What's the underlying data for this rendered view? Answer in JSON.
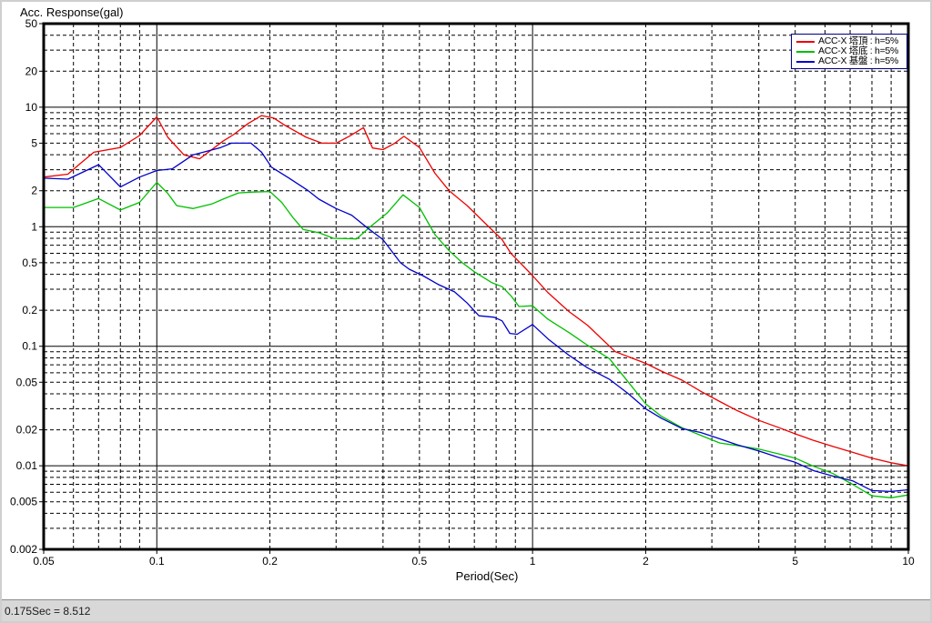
{
  "status_bar": {
    "text": "0.175Sec = 8.512"
  },
  "chart_data": {
    "type": "line",
    "title": "",
    "ylabel": "Acc. Response(gal)",
    "xlabel": "Period(Sec)",
    "x_scale": "log",
    "y_scale": "log",
    "xlim": [
      0.05,
      10
    ],
    "ylim": [
      0.002,
      50
    ],
    "x_ticks": [
      0.05,
      0.1,
      0.2,
      0.5,
      1,
      2,
      5,
      10
    ],
    "x_tick_labels": [
      "0.05",
      "0.1",
      "0.2",
      "0.5",
      "1",
      "2",
      "5",
      "10"
    ],
    "y_ticks": [
      50,
      20,
      10,
      5,
      2,
      1,
      0.5,
      0.2,
      0.1,
      0.05,
      0.02,
      0.01,
      0.005,
      0.002
    ],
    "y_tick_labels": [
      "50",
      "20",
      "10",
      "5",
      "2",
      "1",
      "0.5",
      "0.2",
      "0.1",
      "0.05",
      "0.02",
      "0.01",
      "0.005",
      "0.002"
    ],
    "grid": {
      "on": true,
      "major_style": "solid",
      "minor_style": "dashed",
      "color": "#000000"
    },
    "legend": {
      "position": "top-right",
      "border_color": "#000080",
      "entries": [
        {
          "label": "ACC-X 塔頂 : h=5%",
          "color": "#ee0000"
        },
        {
          "label": "ACC-X 塔底 : h=5%",
          "color": "#00c000"
        },
        {
          "label": "ACC-X 基盤 : h=5%",
          "color": "#0000cc"
        }
      ]
    },
    "series": [
      {
        "name": "ACC-X 塔頂 : h=5%",
        "color": "#ee0000",
        "points": [
          [
            0.05,
            2.6
          ],
          [
            0.058,
            2.75
          ],
          [
            0.062,
            3.3
          ],
          [
            0.068,
            4.2
          ],
          [
            0.08,
            4.6
          ],
          [
            0.09,
            5.8
          ],
          [
            0.1,
            8.3
          ],
          [
            0.107,
            5.6
          ],
          [
            0.118,
            4.0
          ],
          [
            0.13,
            3.7
          ],
          [
            0.15,
            5.2
          ],
          [
            0.16,
            5.9
          ],
          [
            0.175,
            7.3
          ],
          [
            0.19,
            8.5
          ],
          [
            0.205,
            8.1
          ],
          [
            0.22,
            7.0
          ],
          [
            0.25,
            5.6
          ],
          [
            0.275,
            5.0
          ],
          [
            0.3,
            5.0
          ],
          [
            0.325,
            5.7
          ],
          [
            0.355,
            6.75
          ],
          [
            0.375,
            4.56
          ],
          [
            0.4,
            4.42
          ],
          [
            0.43,
            5.0
          ],
          [
            0.455,
            5.7
          ],
          [
            0.5,
            4.6
          ],
          [
            0.55,
            2.8
          ],
          [
            0.6,
            2.0
          ],
          [
            0.67,
            1.5
          ],
          [
            0.75,
            1.06
          ],
          [
            0.83,
            0.78
          ],
          [
            0.875,
            0.6
          ],
          [
            1.0,
            0.39
          ],
          [
            1.1,
            0.28
          ],
          [
            1.25,
            0.195
          ],
          [
            1.4,
            0.15
          ],
          [
            1.66,
            0.09
          ],
          [
            2.0,
            0.072
          ],
          [
            2.2,
            0.062
          ],
          [
            2.5,
            0.052
          ],
          [
            2.8,
            0.042
          ],
          [
            3.15,
            0.0345
          ],
          [
            3.5,
            0.029
          ],
          [
            4.0,
            0.024
          ],
          [
            4.5,
            0.021
          ],
          [
            5.0,
            0.0185
          ],
          [
            5.6,
            0.0163
          ],
          [
            6.3,
            0.0145
          ],
          [
            7.1,
            0.013
          ],
          [
            8.0,
            0.0116
          ],
          [
            9.0,
            0.0106
          ],
          [
            10,
            0.01
          ]
        ]
      },
      {
        "name": "ACC-X 塔底 : h=5%",
        "color": "#00c000",
        "points": [
          [
            0.05,
            1.45
          ],
          [
            0.06,
            1.45
          ],
          [
            0.07,
            1.72
          ],
          [
            0.08,
            1.38
          ],
          [
            0.09,
            1.6
          ],
          [
            0.1,
            2.35
          ],
          [
            0.107,
            1.9
          ],
          [
            0.113,
            1.5
          ],
          [
            0.125,
            1.42
          ],
          [
            0.14,
            1.55
          ],
          [
            0.15,
            1.7
          ],
          [
            0.165,
            1.92
          ],
          [
            0.18,
            1.95
          ],
          [
            0.2,
            1.97
          ],
          [
            0.215,
            1.6
          ],
          [
            0.23,
            1.2
          ],
          [
            0.245,
            0.95
          ],
          [
            0.27,
            0.89
          ],
          [
            0.295,
            0.8
          ],
          [
            0.34,
            0.79
          ],
          [
            0.37,
            1.0
          ],
          [
            0.41,
            1.3
          ],
          [
            0.452,
            1.85
          ],
          [
            0.48,
            1.6
          ],
          [
            0.5,
            1.45
          ],
          [
            0.53,
            1.05
          ],
          [
            0.55,
            0.86
          ],
          [
            0.6,
            0.63
          ],
          [
            0.65,
            0.5
          ],
          [
            0.7,
            0.42
          ],
          [
            0.78,
            0.34
          ],
          [
            0.83,
            0.315
          ],
          [
            0.88,
            0.26
          ],
          [
            0.92,
            0.215
          ],
          [
            1.0,
            0.218
          ],
          [
            1.1,
            0.168
          ],
          [
            1.25,
            0.13
          ],
          [
            1.4,
            0.102
          ],
          [
            1.6,
            0.079
          ],
          [
            1.8,
            0.05
          ],
          [
            2.0,
            0.033
          ],
          [
            2.2,
            0.026
          ],
          [
            2.5,
            0.0208
          ],
          [
            2.8,
            0.018
          ],
          [
            3.15,
            0.0155
          ],
          [
            3.5,
            0.0148
          ],
          [
            4.0,
            0.0138
          ],
          [
            4.5,
            0.0126
          ],
          [
            5.0,
            0.0116
          ],
          [
            5.6,
            0.0099
          ],
          [
            6.3,
            0.0086
          ],
          [
            7.1,
            0.007
          ],
          [
            8.0,
            0.0056
          ],
          [
            9.0,
            0.0054
          ],
          [
            10,
            0.0057
          ]
        ]
      },
      {
        "name": "ACC-X 基盤 : h=5%",
        "color": "#0000cc",
        "points": [
          [
            0.05,
            2.55
          ],
          [
            0.058,
            2.5
          ],
          [
            0.07,
            3.3
          ],
          [
            0.08,
            2.15
          ],
          [
            0.09,
            2.6
          ],
          [
            0.1,
            2.95
          ],
          [
            0.11,
            3.05
          ],
          [
            0.125,
            4.0
          ],
          [
            0.148,
            4.6
          ],
          [
            0.158,
            5.0
          ],
          [
            0.178,
            5.0
          ],
          [
            0.19,
            4.2
          ],
          [
            0.202,
            3.15
          ],
          [
            0.225,
            2.55
          ],
          [
            0.253,
            2.0
          ],
          [
            0.27,
            1.7
          ],
          [
            0.3,
            1.42
          ],
          [
            0.33,
            1.25
          ],
          [
            0.36,
            1.0
          ],
          [
            0.4,
            0.78
          ],
          [
            0.445,
            0.5
          ],
          [
            0.47,
            0.44
          ],
          [
            0.51,
            0.39
          ],
          [
            0.56,
            0.33
          ],
          [
            0.62,
            0.285
          ],
          [
            0.67,
            0.23
          ],
          [
            0.72,
            0.18
          ],
          [
            0.79,
            0.175
          ],
          [
            0.83,
            0.163
          ],
          [
            0.87,
            0.128
          ],
          [
            0.91,
            0.126
          ],
          [
            1.0,
            0.152
          ],
          [
            1.1,
            0.115
          ],
          [
            1.25,
            0.084
          ],
          [
            1.4,
            0.066
          ],
          [
            1.6,
            0.053
          ],
          [
            1.8,
            0.04
          ],
          [
            2.0,
            0.03
          ],
          [
            2.2,
            0.025
          ],
          [
            2.5,
            0.0205
          ],
          [
            2.8,
            0.019
          ],
          [
            3.15,
            0.0168
          ],
          [
            3.5,
            0.015
          ],
          [
            4.0,
            0.0133
          ],
          [
            4.5,
            0.0118
          ],
          [
            5.0,
            0.0107
          ],
          [
            5.6,
            0.0091
          ],
          [
            6.3,
            0.0082
          ],
          [
            7.1,
            0.0075
          ],
          [
            8.0,
            0.0062
          ],
          [
            9.0,
            0.0061
          ],
          [
            10,
            0.0063
          ]
        ]
      }
    ]
  }
}
